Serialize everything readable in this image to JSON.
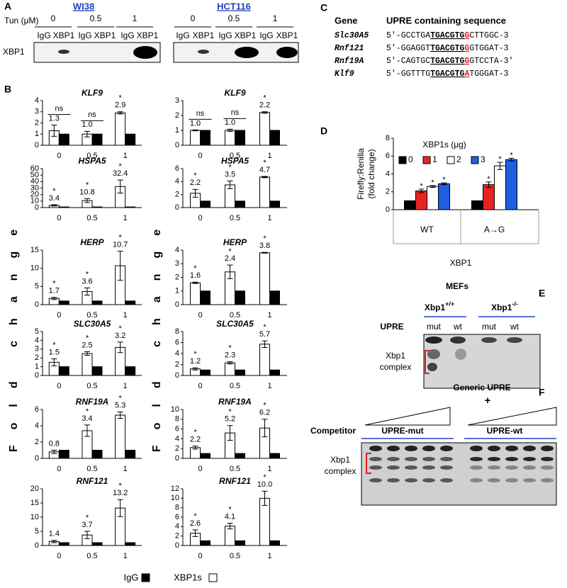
{
  "panel_labels": [
    "A",
    "B",
    "C",
    "D",
    "E",
    "F"
  ],
  "panel_a": {
    "dose_label": "Tun (μM)",
    "cell_lines": [
      "WI38",
      "HCT116"
    ],
    "doses": [
      "0",
      "0.5",
      "1"
    ],
    "lanes": [
      "IgG",
      "XBP1"
    ],
    "band_label": "XBP1"
  },
  "y_axis_label": "Fold change",
  "legend": [
    {
      "name": "IgG",
      "color": "#000000"
    },
    {
      "name": "XBP1s",
      "color": "#ffffff"
    }
  ],
  "panel_c": {
    "header": [
      "Gene",
      "UPRE containing sequence"
    ],
    "rows": [
      {
        "gene": "Slc30A5",
        "prefix": "5'-GCCTGA",
        "core": "TGACGTG",
        "site": "G",
        "suffix": "CTTGGC-3"
      },
      {
        "gene": "Rnf121",
        "prefix": "5'-GGAGGT",
        "core": "TGACGTG",
        "site": "G",
        "suffix": "GTGGAT-3"
      },
      {
        "gene": "Rnf19A",
        "prefix": "5'-CAGTGC",
        "core": "TGACGTG",
        "site": "G",
        "suffix": "GTCCTA-3'"
      },
      {
        "gene": "Klf9",
        "prefix": "5'-GGTTTG",
        "core": "TGACGTG",
        "site": "A",
        "suffix": "TGGGAT-3"
      }
    ]
  },
  "panel_e": {
    "title": "MEFs",
    "genotypes": [
      {
        "base": "Xbp1",
        "sup": "+/+"
      },
      {
        "base": "Xbp1",
        "sup": "-/-"
      }
    ],
    "row_label": "UPRE",
    "lanes": [
      "mut",
      "wt",
      "mut",
      "wt"
    ],
    "complex_label": [
      "Xbp1",
      "complex"
    ]
  },
  "panel_f": {
    "title": "Generic UPRE",
    "plus": "+",
    "row_label": "Competitor",
    "groups": [
      "UPRE-mut",
      "UPRE-wt"
    ],
    "complex_label": [
      "Xbp1",
      "complex"
    ]
  },
  "chart_data": [
    {
      "type": "bar",
      "title": "KLF9",
      "categories": [
        "0",
        "0.5",
        "1"
      ],
      "ylim": [
        0,
        4
      ],
      "yticks": [
        0,
        1,
        2,
        3,
        4
      ],
      "series": [
        {
          "color": "#ffffff",
          "values": [
            1.3,
            1.0,
            2.9
          ],
          "value_labels": [
            "1.3",
            "1.0",
            "2.9"
          ],
          "errors": [
            0.5,
            0.25,
            0.1
          ],
          "significance": [
            "ns",
            "ns",
            "*"
          ]
        },
        {
          "color": "#000000",
          "values": [
            1,
            1,
            1
          ]
        }
      ]
    },
    {
      "type": "bar",
      "title": "KLF9",
      "categories": [
        "0",
        "0.5",
        "1"
      ],
      "ylim": [
        0,
        3
      ],
      "yticks": [
        0,
        1,
        2,
        3
      ],
      "series": [
        {
          "color": "#ffffff",
          "values": [
            1.0,
            1.0,
            2.2
          ],
          "value_labels": [
            "1.0",
            "1.0",
            "2.2"
          ],
          "errors": [
            0.03,
            0.08,
            0.05
          ],
          "significance": [
            "ns",
            "ns",
            "*"
          ]
        },
        {
          "color": "#000000",
          "values": [
            1,
            1,
            1
          ]
        }
      ]
    },
    {
      "type": "bar",
      "title": "HSPA5",
      "categories": [
        "0",
        "0.5",
        "1"
      ],
      "ylim": [
        0,
        60
      ],
      "yticks": [
        0,
        10,
        20,
        30,
        40,
        50,
        60
      ],
      "series": [
        {
          "color": "#ffffff",
          "values": [
            3.4,
            10.8,
            32.4
          ],
          "value_labels": [
            "3.4",
            "10.8",
            "32.4"
          ],
          "errors": [
            1,
            3,
            10
          ],
          "significance": [
            "*",
            "*",
            "*"
          ]
        },
        {
          "color": "#000000",
          "values": [
            1,
            1,
            1
          ]
        }
      ]
    },
    {
      "type": "bar",
      "title": "HSPA5",
      "categories": [
        "0",
        "0.5",
        "1"
      ],
      "ylim": [
        0,
        6
      ],
      "yticks": [
        0,
        2,
        4,
        6
      ],
      "series": [
        {
          "color": "#ffffff",
          "values": [
            2.2,
            3.5,
            4.7
          ],
          "value_labels": [
            "2.2",
            "3.5",
            "4.7"
          ],
          "errors": [
            0.6,
            0.6,
            0.1
          ],
          "significance": [
            "*",
            "*",
            "*"
          ]
        },
        {
          "color": "#000000",
          "values": [
            1,
            1,
            1
          ]
        }
      ]
    },
    {
      "type": "bar",
      "title": "HERP",
      "categories": [
        "0",
        "0.5",
        "1"
      ],
      "ylim": [
        0,
        15
      ],
      "yticks": [
        0,
        5,
        10,
        15
      ],
      "series": [
        {
          "color": "#ffffff",
          "values": [
            1.7,
            3.6,
            10.7
          ],
          "value_labels": [
            "1.7",
            "3.6",
            "10.7"
          ],
          "errors": [
            0.3,
            1,
            4
          ],
          "significance": [
            "*",
            "*",
            "*"
          ]
        },
        {
          "color": "#000000",
          "values": [
            1,
            1,
            1
          ]
        }
      ]
    },
    {
      "type": "bar",
      "title": "HERP",
      "categories": [
        "0",
        "0.5",
        "1"
      ],
      "ylim": [
        0,
        4
      ],
      "yticks": [
        0,
        1,
        2,
        3,
        4
      ],
      "series": [
        {
          "color": "#ffffff",
          "values": [
            1.6,
            2.4,
            3.8
          ],
          "value_labels": [
            "1.6",
            "2.4",
            "3.8"
          ],
          "errors": [
            0.05,
            0.5,
            0.03
          ],
          "significance": [
            "*",
            "*",
            "*"
          ]
        },
        {
          "color": "#000000",
          "values": [
            1,
            1,
            1
          ]
        }
      ]
    },
    {
      "type": "bar",
      "title": "SLC30A5",
      "categories": [
        "0",
        "0.5",
        "1"
      ],
      "ylim": [
        0,
        5
      ],
      "yticks": [
        0,
        1,
        2,
        3,
        4,
        5
      ],
      "series": [
        {
          "color": "#ffffff",
          "values": [
            1.5,
            2.5,
            3.2
          ],
          "value_labels": [
            "1.5",
            "2.5",
            "3.2"
          ],
          "errors": [
            0.4,
            0.2,
            0.6
          ],
          "significance": [
            "*",
            "*",
            "*"
          ]
        },
        {
          "color": "#000000",
          "values": [
            1,
            1,
            1
          ]
        }
      ]
    },
    {
      "type": "bar",
      "title": "SLC30A5",
      "categories": [
        "0",
        "0.5",
        "1"
      ],
      "ylim": [
        0,
        8
      ],
      "yticks": [
        0,
        2,
        4,
        6,
        8
      ],
      "series": [
        {
          "color": "#ffffff",
          "values": [
            1.2,
            2.3,
            5.7
          ],
          "value_labels": [
            "1.2",
            "2.3",
            "5.7"
          ],
          "errors": [
            0.2,
            0.2,
            0.6
          ],
          "significance": [
            "*",
            "*",
            "*"
          ]
        },
        {
          "color": "#000000",
          "values": [
            1,
            1,
            1
          ]
        }
      ]
    },
    {
      "type": "bar",
      "title": "RNF19A",
      "categories": [
        "0",
        "0.5",
        "1"
      ],
      "ylim": [
        0,
        6
      ],
      "yticks": [
        0,
        2,
        4,
        6
      ],
      "series": [
        {
          "color": "#ffffff",
          "values": [
            0.8,
            3.4,
            5.3
          ],
          "value_labels": [
            "0.8",
            "3.4",
            "5.3"
          ],
          "errors": [
            0.2,
            0.7,
            0.4
          ],
          "significance": [
            null,
            "*",
            "*"
          ]
        },
        {
          "color": "#000000",
          "values": [
            1,
            1,
            1
          ]
        }
      ]
    },
    {
      "type": "bar",
      "title": "RNF19A",
      "categories": [
        "0",
        "0.5",
        "1"
      ],
      "ylim": [
        0,
        10
      ],
      "yticks": [
        0,
        2,
        4,
        6,
        8,
        10
      ],
      "series": [
        {
          "color": "#ffffff",
          "values": [
            2.2,
            5.2,
            6.2
          ],
          "value_labels": [
            "2.2",
            "5.2",
            "6.2"
          ],
          "errors": [
            0.3,
            1.5,
            1.8
          ],
          "significance": [
            "*",
            "*",
            "*"
          ]
        },
        {
          "color": "#000000",
          "values": [
            1,
            1,
            1
          ]
        }
      ]
    },
    {
      "type": "bar",
      "title": "RNF121",
      "categories": [
        "0",
        "0.5",
        "1"
      ],
      "ylim": [
        0,
        20
      ],
      "yticks": [
        0,
        5,
        10,
        15,
        20
      ],
      "series": [
        {
          "color": "#ffffff",
          "values": [
            1.4,
            3.7,
            13.2
          ],
          "value_labels": [
            "1.4",
            "3.7",
            "13.2"
          ],
          "errors": [
            0.4,
            1.3,
            3
          ],
          "significance": [
            null,
            "*",
            "*"
          ]
        },
        {
          "color": "#000000",
          "values": [
            1,
            1,
            1
          ]
        }
      ]
    },
    {
      "type": "bar",
      "title": "RNF121",
      "categories": [
        "0",
        "0.5",
        "1"
      ],
      "ylim": [
        0,
        12
      ],
      "yticks": [
        0,
        2,
        4,
        6,
        8,
        10,
        12
      ],
      "series": [
        {
          "color": "#ffffff",
          "values": [
            2.6,
            4.1,
            10.0
          ],
          "value_labels": [
            "2.6",
            "4.1",
            "10.0"
          ],
          "errors": [
            0.7,
            0.6,
            1.5
          ],
          "significance": [
            "*",
            "*",
            "*"
          ]
        },
        {
          "color": "#000000",
          "values": [
            1,
            1,
            1
          ]
        }
      ]
    },
    {
      "type": "bar",
      "ylabel": [
        "Firefly:Renilla",
        "(fold change)"
      ],
      "xlabel": "XBP1",
      "legend_title": "XBP1s (μg)",
      "categories": [
        "WT",
        "A→G"
      ],
      "ylim": [
        0,
        8
      ],
      "yticks": [
        0,
        2,
        4,
        6,
        8
      ],
      "series": [
        {
          "name": "0",
          "color": "#000000",
          "values": [
            1,
            1
          ]
        },
        {
          "name": "1",
          "color": "#e8231f",
          "values": [
            2.1,
            2.8
          ],
          "errors": [
            0.2,
            0.3
          ],
          "significance": [
            "*",
            "*"
          ]
        },
        {
          "name": "2",
          "color": "#ffffff",
          "values": [
            2.6,
            4.9
          ],
          "errors": [
            0.1,
            0.4
          ],
          "significance": [
            "*",
            "*"
          ]
        },
        {
          "name": "3",
          "color": "#1f5fe0",
          "values": [
            2.9,
            5.6
          ],
          "errors": [
            0.1,
            0.15
          ],
          "significance": [
            "*",
            "*"
          ]
        }
      ]
    }
  ]
}
